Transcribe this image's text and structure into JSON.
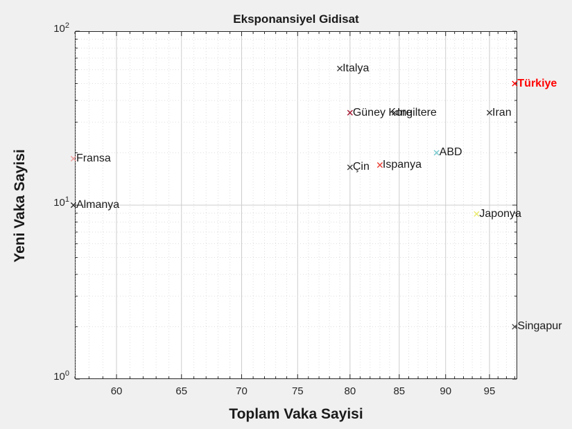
{
  "figure": {
    "background": "#f0f0f0",
    "plot_background": "#ffffff",
    "axis_color": "#262626",
    "grid_major_color": "#cccccc",
    "grid_minor_color": "#dddddd"
  },
  "chart_data": {
    "type": "scatter",
    "title": "Eksponansiyel Gidisat",
    "xlabel": "Toplam Vaka Sayisi",
    "ylabel": "Yeni Vaka Sayisi",
    "xscale": "log",
    "yscale": "log",
    "xlim": [
      57,
      98.3
    ],
    "ylim": [
      1,
      100
    ],
    "x_major_ticks": [
      60,
      65,
      70,
      75,
      80,
      85,
      90,
      95
    ],
    "x_minor_tick_step": 1,
    "y_major_ticks": [
      1,
      10,
      100
    ],
    "y_major_tick_labels": [
      "10^0",
      "10^1",
      "10^2"
    ],
    "y_minor_ticks": [
      2,
      3,
      4,
      5,
      6,
      7,
      8,
      9,
      20,
      30,
      40,
      50,
      60,
      70,
      80,
      90
    ],
    "grid": "on",
    "minor_grid": "on",
    "marker": "x",
    "points": [
      {
        "label": "Italya",
        "x": 79,
        "y": 61,
        "marker_color": "#3a3a3a",
        "label_color": "#1a1a1a",
        "bold": false
      },
      {
        "label": "Türkiye",
        "x": 98,
        "y": 50,
        "marker_color": "#ff0000",
        "label_color": "#ff0000",
        "bold": true
      },
      {
        "label": "Güney Kore",
        "x": 80,
        "y": 34,
        "marker_color": "#a2142f",
        "label_color": "#1a1a1a",
        "bold": false
      },
      {
        "label": "Ingiltere",
        "x": 84.5,
        "y": 34,
        "marker_color": "#3a3a3a",
        "label_color": "#1a1a1a",
        "bold": false
      },
      {
        "label": "Iran",
        "x": 95,
        "y": 34,
        "marker_color": "#3a3a3a",
        "label_color": "#1a1a1a",
        "bold": false
      },
      {
        "label": "ABD",
        "x": 89,
        "y": 20,
        "marker_color": "#76c7cc",
        "label_color": "#1a1a1a",
        "bold": false
      },
      {
        "label": "Fransa",
        "x": 56.9,
        "y": 18.5,
        "marker_color": "#ef9a9a",
        "label_color": "#1a1a1a",
        "bold": false
      },
      {
        "label": "Çin",
        "x": 80,
        "y": 16.5,
        "marker_color": "#3a3a3a",
        "label_color": "#1a1a1a",
        "bold": false
      },
      {
        "label": "Ispanya",
        "x": 83,
        "y": 17,
        "marker_color": "#e8392e",
        "label_color": "#1a1a1a",
        "bold": false
      },
      {
        "label": "Almanya",
        "x": 56.9,
        "y": 10,
        "marker_color": "#2a2a2a",
        "label_color": "#1a1a1a",
        "bold": false
      },
      {
        "label": "Japonya",
        "x": 93.5,
        "y": 8.9,
        "marker_color": "#e9e96d",
        "label_color": "#1a1a1a",
        "bold": false
      },
      {
        "label": "Singapur",
        "x": 98,
        "y": 2,
        "marker_color": "#4d4d4d",
        "label_color": "#1a1a1a",
        "bold": false
      }
    ]
  }
}
